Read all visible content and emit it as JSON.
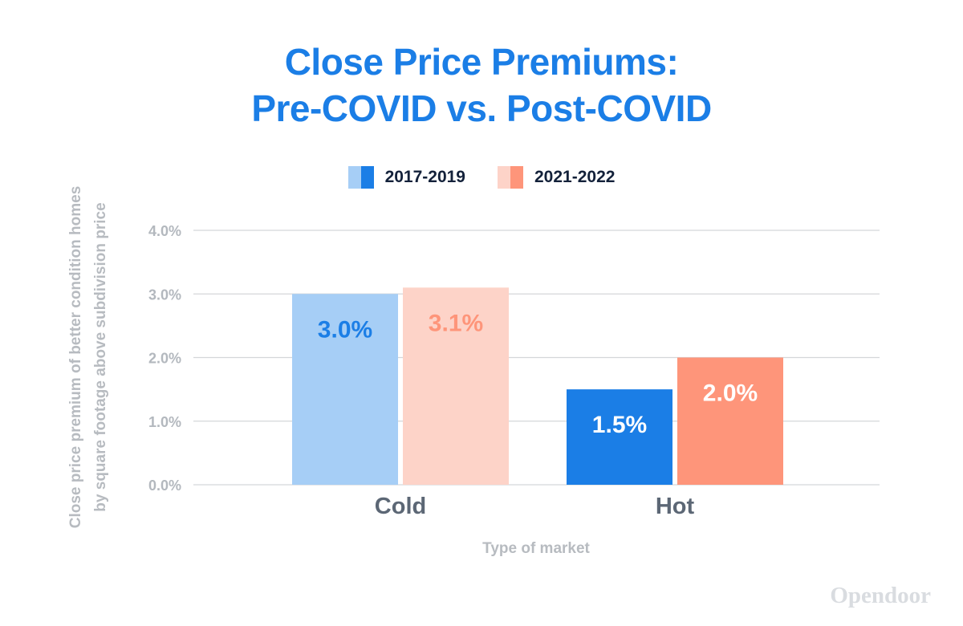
{
  "chart_data": {
    "type": "bar",
    "title": [
      "Close Price Premiums:",
      "Pre-COVID vs. Post-COVID"
    ],
    "categories": [
      "Cold",
      "Hot"
    ],
    "series": [
      {
        "name": "2017-2019",
        "values": [
          3.0,
          1.5
        ],
        "labels": [
          "3.0%",
          "1.5%"
        ]
      },
      {
        "name": "2021-2022",
        "values": [
          3.1,
          2.0
        ],
        "labels": [
          "3.1%",
          "2.0%"
        ]
      }
    ],
    "xlabel": "Type of market",
    "ylabel": [
      "Close price premium of better condition homes",
      "by square footage above subdivision price"
    ],
    "ylim": [
      0,
      4
    ],
    "yticks": [
      0,
      1,
      2,
      3,
      4
    ],
    "ytick_labels": [
      "0.0%",
      "1.0%",
      "2.0%",
      "3.0%",
      "4.0%"
    ],
    "grid": true,
    "legend_position": "top-center",
    "colors": {
      "series_0": {
        "Cold": "#a6cef6",
        "Hot": "#1b7ee6"
      },
      "series_1": {
        "Cold": "#fdd3c8",
        "Hot": "#fe957a"
      },
      "label_colors": {
        "series_0": {
          "Cold": "#1b7ee6",
          "Hot": "#ffffff"
        },
        "series_1": {
          "Cold": "#fe957a",
          "Hot": "#ffffff"
        }
      },
      "title": "#1b7ee6",
      "grid": "#d4d6d9"
    }
  },
  "brand": {
    "logo_text": "Opendoor"
  }
}
